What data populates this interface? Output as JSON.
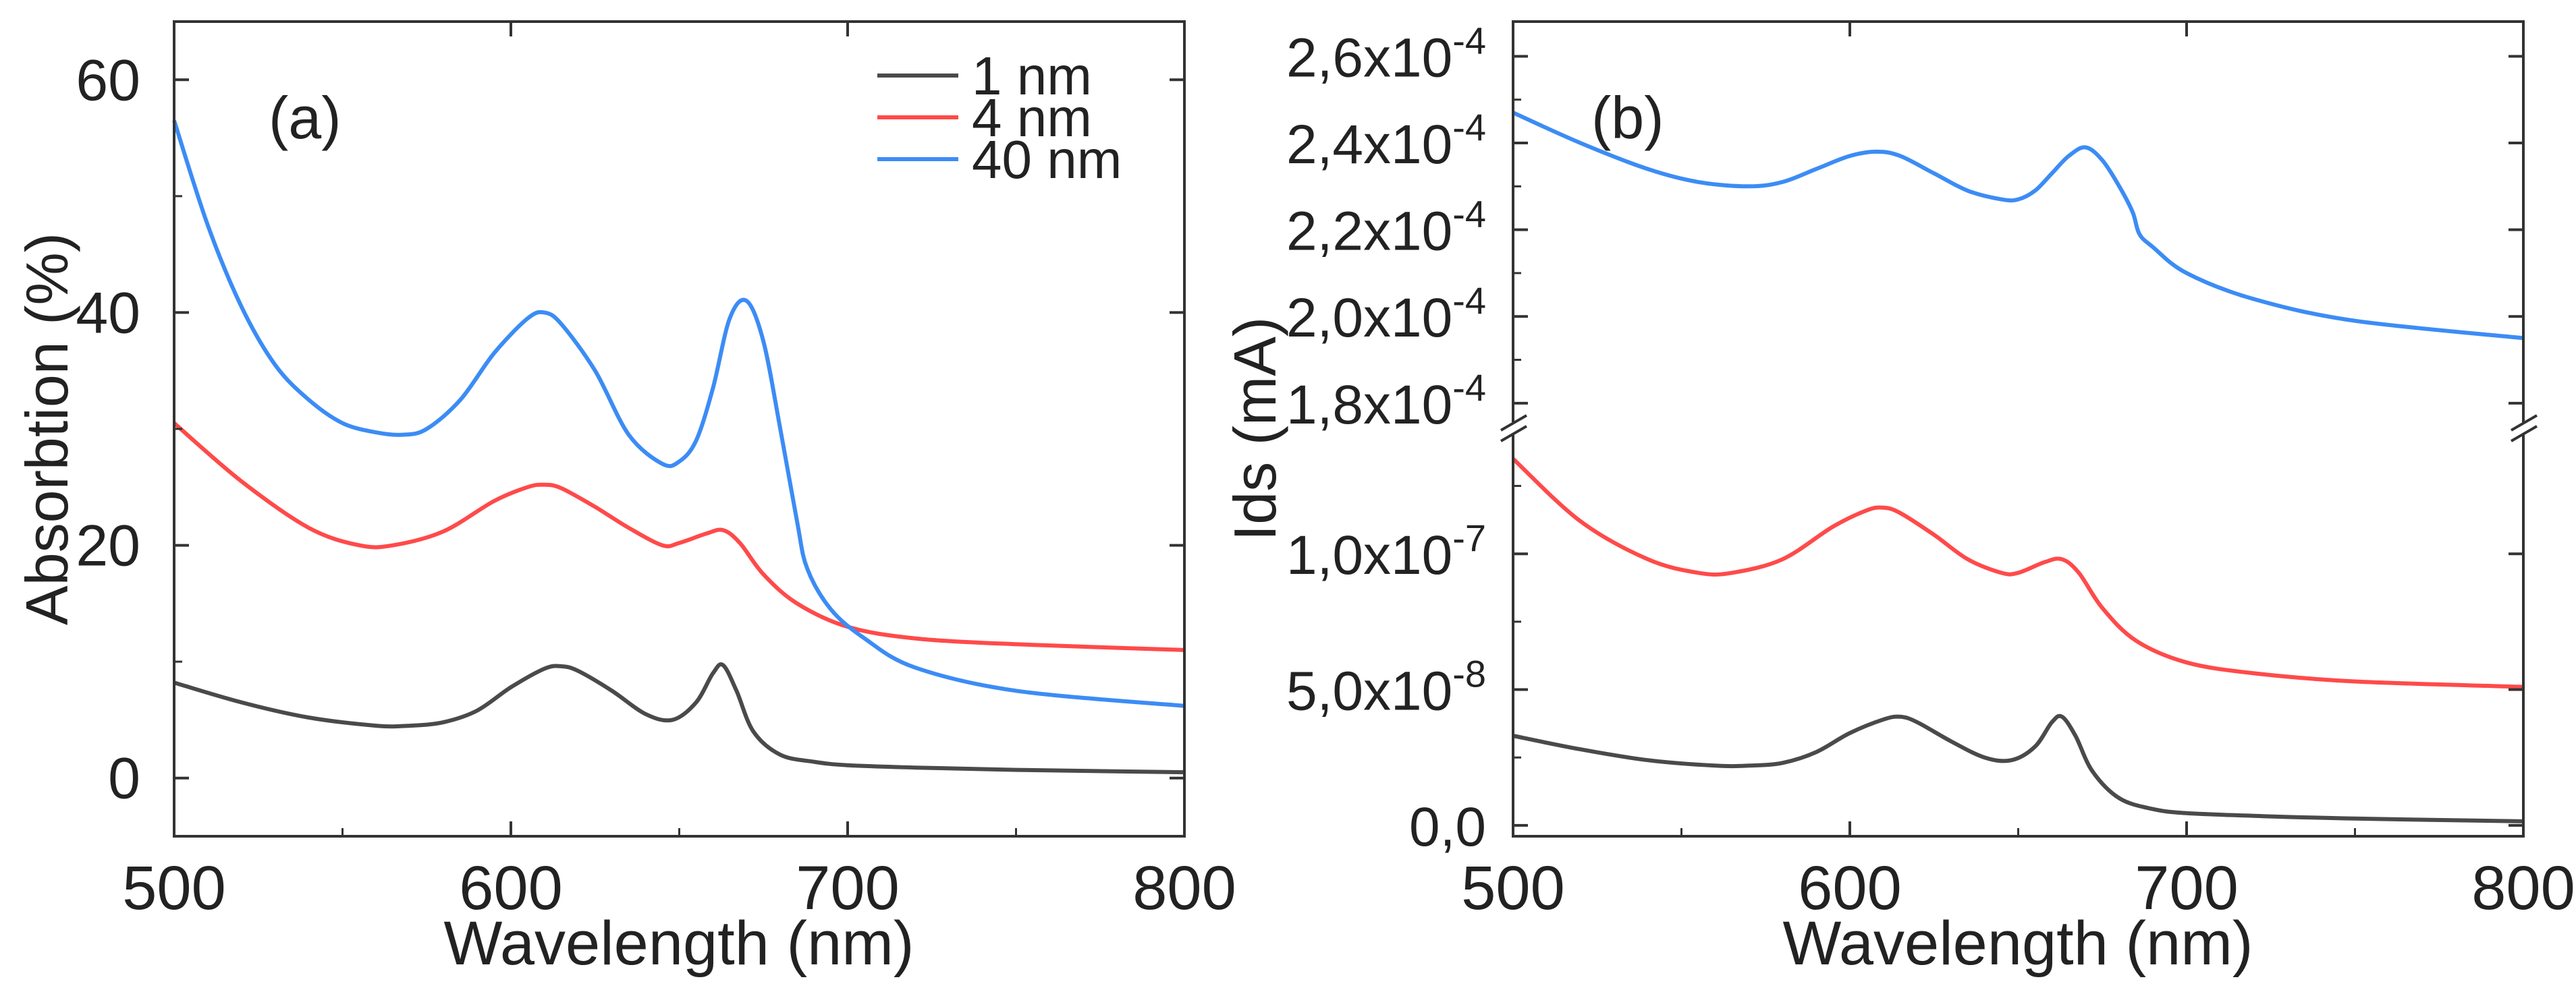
{
  "chart_data": [
    {
      "type": "line",
      "panel_label": "(a)",
      "xlabel": "Wavelength (nm)",
      "ylabel": "Absorbtion (%)",
      "xlim": [
        500,
        800
      ],
      "ylim": [
        -5,
        65
      ],
      "xticks": [
        "500",
        "600",
        "700",
        "800"
      ],
      "yticks": [
        "0",
        "20",
        "40",
        "60"
      ],
      "legend_position": "top-right",
      "series": [
        {
          "name": "1 nm",
          "color": "#4a4a4a",
          "x": [
            500,
            520,
            540,
            560,
            570,
            580,
            590,
            600,
            610,
            615,
            620,
            630,
            640,
            648,
            655,
            660,
            663,
            667,
            672,
            680,
            690,
            700,
            720,
            750,
            800
          ],
          "y": [
            8.2,
            6.5,
            5.2,
            4.5,
            4.5,
            4.8,
            5.8,
            7.8,
            9.4,
            9.6,
            9.2,
            7.5,
            5.5,
            5.0,
            6.5,
            9.0,
            9.7,
            7.5,
            4.0,
            2.0,
            1.4,
            1.1,
            0.9,
            0.7,
            0.5
          ]
        },
        {
          "name": "4 nm",
          "color": "#ff4a4a",
          "x": [
            500,
            520,
            540,
            555,
            565,
            580,
            595,
            605,
            610,
            615,
            625,
            635,
            645,
            650,
            658,
            663,
            668,
            675,
            685,
            700,
            720,
            750,
            800
          ],
          "y": [
            30.5,
            25.5,
            21.5,
            20.0,
            20.0,
            21.2,
            23.8,
            25.0,
            25.2,
            24.9,
            23.3,
            21.5,
            20.0,
            20.2,
            21.0,
            21.3,
            20.2,
            17.5,
            15.0,
            13.0,
            12.0,
            11.5,
            11.0
          ]
        },
        {
          "name": "40 nm",
          "color": "#3c8cf5",
          "x": [
            500,
            510,
            520,
            530,
            540,
            550,
            560,
            568,
            575,
            585,
            595,
            605,
            610,
            615,
            625,
            635,
            645,
            650,
            655,
            660,
            665,
            670,
            675,
            680,
            685,
            688,
            695,
            705,
            720,
            750,
            800
          ],
          "y": [
            56.5,
            47.5,
            40.5,
            35.5,
            32.5,
            30.5,
            29.7,
            29.5,
            30.0,
            32.5,
            36.5,
            39.5,
            40.0,
            39.0,
            35.0,
            29.5,
            27.0,
            27.2,
            29.0,
            33.5,
            39.5,
            41.0,
            37.5,
            30.0,
            22.0,
            18.0,
            14.5,
            12.0,
            9.5,
            7.5,
            6.2
          ]
        }
      ]
    },
    {
      "type": "line",
      "panel_label": "(b)",
      "xlabel": "Wavelength (nm)",
      "ylabel": "Ids (mA)",
      "xlim": [
        500,
        800
      ],
      "axis_break": true,
      "upper_segment": {
        "ylim": [
          0.000175,
          0.000268
        ],
        "ytick_values": [
          0.00018,
          0.0002,
          0.00022,
          0.00024,
          0.00026
        ],
        "ytick_mantissa": [
          "1,8x10",
          "2,0x10",
          "2,2x10",
          "2,4x10",
          "2,6x10"
        ],
        "ytick_exponent": [
          "-4",
          "-4",
          "-4",
          "-4",
          "-4"
        ]
      },
      "lower_segment": {
        "ylim": [
          -4e-09,
          1.45e-07
        ],
        "ytick_values": [
          0.0,
          5e-08,
          1e-07
        ],
        "ytick_mantissa": [
          "0,0",
          "5,0x10",
          "1,0x10"
        ],
        "ytick_exponent": [
          "",
          "-8",
          "-7"
        ]
      },
      "xticks": [
        "500",
        "600",
        "700",
        "800"
      ],
      "series": [
        {
          "name": "1 nm",
          "color": "#4a4a4a",
          "segment": "lower",
          "x": [
            500,
            520,
            540,
            560,
            570,
            580,
            590,
            600,
            610,
            615,
            620,
            630,
            640,
            648,
            655,
            660,
            663,
            667,
            672,
            680,
            690,
            700,
            720,
            750,
            800
          ],
          "y": [
            3.3e-08,
            2.8e-08,
            2.4e-08,
            2.2e-08,
            2.2e-08,
            2.3e-08,
            2.7e-08,
            3.4e-08,
            3.9e-08,
            4e-08,
            3.8e-08,
            3.1e-08,
            2.5e-08,
            2.4e-08,
            2.9e-08,
            3.8e-08,
            4e-08,
            3.3e-08,
            2e-08,
            1e-08,
            6e-09,
            4.5e-09,
            3.5e-09,
            2.5e-09,
            1.5e-09
          ]
        },
        {
          "name": "4 nm",
          "color": "#ff4a4a",
          "segment": "lower",
          "x": [
            500,
            520,
            540,
            555,
            565,
            580,
            595,
            605,
            610,
            615,
            625,
            635,
            645,
            650,
            658,
            663,
            668,
            675,
            685,
            700,
            720,
            750,
            800
          ],
          "y": [
            1.35e-07,
            1.12e-07,
            9.8e-08,
            9.3e-08,
            9.3e-08,
            9.8e-08,
            1.1e-07,
            1.16e-07,
            1.17e-07,
            1.15e-07,
            1.07e-07,
            9.8e-08,
            9.3e-08,
            9.3e-08,
            9.7e-08,
            9.8e-08,
            9.3e-08,
            8e-08,
            6.8e-08,
            6e-08,
            5.6e-08,
            5.3e-08,
            5.1e-08
          ]
        },
        {
          "name": "40 nm",
          "color": "#3c8cf5",
          "segment": "upper",
          "x": [
            500,
            520,
            540,
            555,
            570,
            580,
            590,
            600,
            608,
            615,
            625,
            635,
            645,
            650,
            655,
            660,
            665,
            670,
            675,
            680,
            684,
            686,
            690,
            700,
            720,
            750,
            800
          ],
          "y": [
            0.000247,
            0.00024,
            0.000234,
            0.000231,
            0.00023,
            0.000231,
            0.000234,
            0.000237,
            0.000238,
            0.000237,
            0.000233,
            0.000229,
            0.000227,
            0.000227,
            0.000229,
            0.000233,
            0.000237,
            0.000239,
            0.000236,
            0.00023,
            0.000224,
            0.000219,
            0.000216,
            0.00021,
            0.000204,
            0.000199,
            0.000195
          ]
        }
      ]
    }
  ]
}
